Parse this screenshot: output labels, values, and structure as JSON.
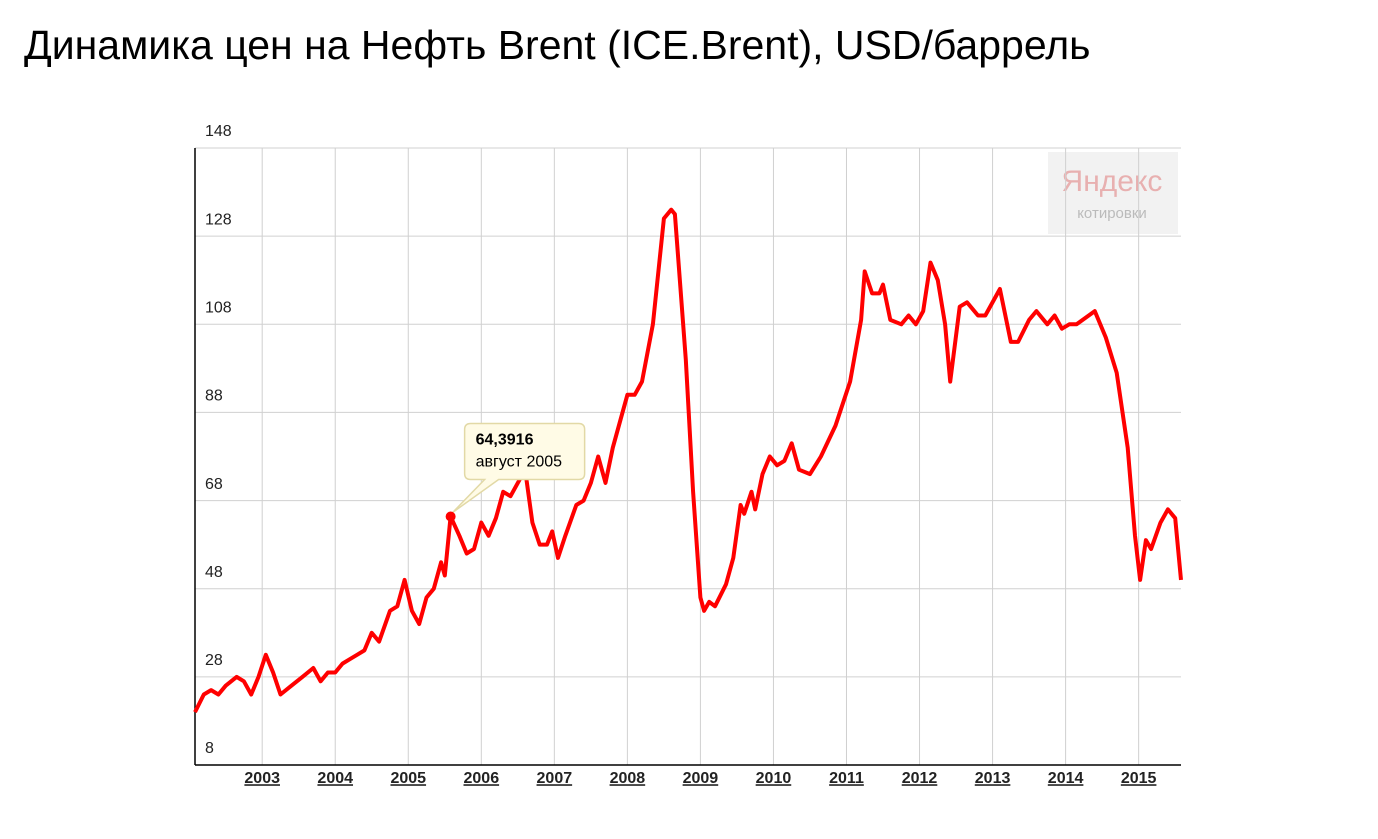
{
  "chart_data": {
    "type": "line",
    "title": "Динамика цен на Нефть Brent (ICE.Brent), USD/баррель",
    "color": "#ff0000",
    "x": [
      2002.08,
      2002.2,
      2002.3,
      2002.4,
      2002.5,
      2002.65,
      2002.75,
      2002.85,
      2002.95,
      2003.05,
      2003.15,
      2003.25,
      2003.4,
      2003.55,
      2003.7,
      2003.8,
      2003.9,
      2004.0,
      2004.1,
      2004.2,
      2004.3,
      2004.4,
      2004.5,
      2004.6,
      2004.75,
      2004.85,
      2004.95,
      2005.05,
      2005.15,
      2005.25,
      2005.35,
      2005.45,
      2005.5,
      2005.58,
      2005.7,
      2005.8,
      2005.9,
      2006.0,
      2006.1,
      2006.2,
      2006.3,
      2006.4,
      2006.5,
      2006.6,
      2006.7,
      2006.8,
      2006.9,
      2006.97,
      2007.05,
      2007.15,
      2007.3,
      2007.4,
      2007.5,
      2007.6,
      2007.7,
      2007.8,
      2007.9,
      2008.0,
      2008.1,
      2008.2,
      2008.35,
      2008.5,
      2008.6,
      2008.65,
      2008.8,
      2008.9,
      2009.0,
      2009.05,
      2009.12,
      2009.2,
      2009.35,
      2009.45,
      2009.55,
      2009.6,
      2009.7,
      2009.75,
      2009.85,
      2009.95,
      2010.05,
      2010.15,
      2010.25,
      2010.35,
      2010.5,
      2010.65,
      2010.85,
      2011.05,
      2011.2,
      2011.25,
      2011.35,
      2011.45,
      2011.5,
      2011.6,
      2011.75,
      2011.85,
      2011.95,
      2012.05,
      2012.15,
      2012.25,
      2012.35,
      2012.42,
      2012.55,
      2012.65,
      2012.8,
      2012.9,
      2013.1,
      2013.25,
      2013.35,
      2013.5,
      2013.6,
      2013.75,
      2013.85,
      2013.95,
      2014.05,
      2014.15,
      2014.4,
      2014.55,
      2014.7,
      2014.85,
      2014.95,
      2015.02,
      2015.1,
      2015.17,
      2015.3,
      2015.4,
      2015.5,
      2015.58
    ],
    "values": [
      20,
      24,
      25,
      24,
      26,
      28,
      27,
      24,
      28,
      33,
      29,
      24,
      26,
      28,
      30,
      27,
      29,
      29,
      31,
      32,
      33,
      34,
      38,
      36,
      43,
      44,
      50,
      43,
      40,
      46,
      48,
      54,
      51,
      64.39,
      60,
      56,
      57,
      63,
      60,
      64,
      70,
      69,
      72,
      75,
      63,
      58,
      58,
      61,
      55,
      60,
      67,
      68,
      72,
      78,
      72,
      80,
      86,
      92,
      92,
      95,
      108,
      132,
      134,
      133,
      100,
      70,
      46,
      43,
      45,
      44,
      49,
      55,
      67,
      65,
      70,
      66,
      74,
      78,
      76,
      77,
      81,
      75,
      74,
      78,
      85,
      95,
      109,
      120,
      115,
      115,
      117,
      109,
      108,
      110,
      108,
      111,
      122,
      118,
      108,
      95,
      112,
      113,
      110,
      110,
      116,
      104,
      104,
      109,
      111,
      108,
      110,
      107,
      108,
      108,
      111,
      105,
      97,
      80,
      60,
      50,
      59,
      57,
      63,
      66,
      64,
      50
    ],
    "xlim": [
      2002.08,
      2015.58
    ],
    "ylim": [
      8,
      148
    ],
    "xticks": [
      2003,
      2004,
      2005,
      2006,
      2007,
      2008,
      2009,
      2010,
      2011,
      2012,
      2013,
      2014,
      2015
    ],
    "yticks": [
      8,
      28,
      48,
      68,
      88,
      108,
      128,
      148
    ],
    "grid": true,
    "annotation": {
      "x": 2005.58,
      "y": 64.3916,
      "label": "64,3916",
      "date": "август 2005"
    },
    "watermark": {
      "brand": "Яндекс",
      "caption": "котировки"
    }
  }
}
